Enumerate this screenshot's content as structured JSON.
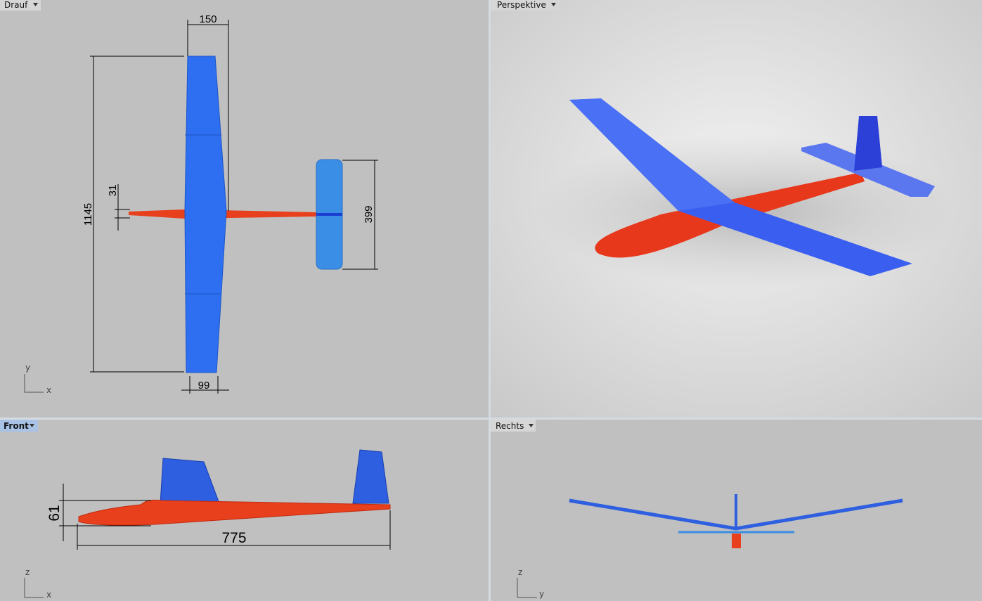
{
  "viewports": [
    {
      "label": "Drauf",
      "axes": [
        "y",
        "x"
      ],
      "dimensions": [
        150,
        1145,
        31,
        399,
        99
      ]
    },
    {
      "label": "Perspektive"
    },
    {
      "label": "Front",
      "axes": [
        "z",
        "x"
      ],
      "dimensions": [
        61,
        775
      ]
    },
    {
      "label": "Rechts",
      "axes": [
        "z",
        "y"
      ]
    }
  ]
}
